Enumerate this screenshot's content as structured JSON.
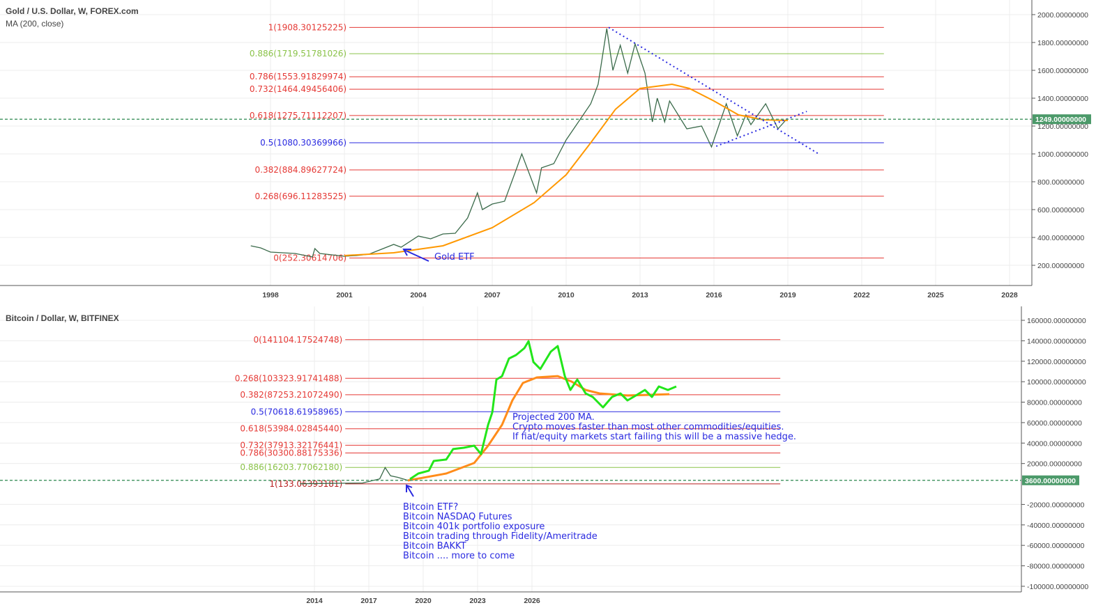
{
  "chart_data": [
    {
      "type": "line",
      "title": "Gold / U.S. Dollar, W, FOREX.com",
      "indicator": "MA (200, close)",
      "xlim": [
        1996.6,
        2028.5
      ],
      "ylim": [
        100,
        2040
      ],
      "x_ticks": [
        "1998",
        "2001",
        "2004",
        "2007",
        "2010",
        "2013",
        "2016",
        "2019",
        "2022",
        "2025",
        "2028"
      ],
      "y_ticks": [
        "200.00000000",
        "400.00000000",
        "600.00000000",
        "800.00000000",
        "1000.00000000",
        "1200.00000000",
        "1400.00000000",
        "1600.00000000",
        "1800.00000000",
        "2000.00000000"
      ],
      "y_tick_values": [
        200,
        400,
        600,
        800,
        1000,
        1200,
        1400,
        1600,
        1800,
        2000
      ],
      "current_price": {
        "value": 1249,
        "label": "1249.00000000",
        "color": "#4c9a6a"
      },
      "grid": true,
      "price": [
        [
          1997.2,
          340
        ],
        [
          1997.6,
          325
        ],
        [
          1998,
          295
        ],
        [
          1999,
          285
        ],
        [
          1999.7,
          260
        ],
        [
          1999.8,
          320
        ],
        [
          2000,
          285
        ],
        [
          2001,
          265
        ],
        [
          2001.5,
          270
        ],
        [
          2002,
          280
        ],
        [
          2002.5,
          315
        ],
        [
          2003,
          350
        ],
        [
          2003.3,
          330
        ],
        [
          2004,
          410
        ],
        [
          2004.5,
          390
        ],
        [
          2005,
          425
        ],
        [
          2005.5,
          430
        ],
        [
          2006,
          540
        ],
        [
          2006.4,
          720
        ],
        [
          2006.6,
          600
        ],
        [
          2007,
          640
        ],
        [
          2007.5,
          660
        ],
        [
          2008,
          900
        ],
        [
          2008.2,
          1000
        ],
        [
          2008.8,
          720
        ],
        [
          2009,
          900
        ],
        [
          2009.5,
          930
        ],
        [
          2010,
          1100
        ],
        [
          2010.5,
          1230
        ],
        [
          2011,
          1360
        ],
        [
          2011.3,
          1500
        ],
        [
          2011.65,
          1900
        ],
        [
          2011.9,
          1600
        ],
        [
          2012.2,
          1780
        ],
        [
          2012.5,
          1580
        ],
        [
          2012.8,
          1790
        ],
        [
          2013.2,
          1580
        ],
        [
          2013.5,
          1230
        ],
        [
          2013.7,
          1400
        ],
        [
          2014,
          1230
        ],
        [
          2014.2,
          1380
        ],
        [
          2014.9,
          1180
        ],
        [
          2015.5,
          1200
        ],
        [
          2015.9,
          1050
        ],
        [
          2016.5,
          1360
        ],
        [
          2016.95,
          1130
        ],
        [
          2017.3,
          1280
        ],
        [
          2017.5,
          1210
        ],
        [
          2018.1,
          1360
        ],
        [
          2018.6,
          1180
        ],
        [
          2018.95,
          1249
        ]
      ],
      "ma200": [
        [
          2001,
          270
        ],
        [
          2003,
          290
        ],
        [
          2005,
          340
        ],
        [
          2007,
          470
        ],
        [
          2008.7,
          650
        ],
        [
          2010,
          850
        ],
        [
          2011,
          1080
        ],
        [
          2012,
          1320
        ],
        [
          2013,
          1470
        ],
        [
          2014.3,
          1500
        ],
        [
          2015,
          1470
        ],
        [
          2016,
          1380
        ],
        [
          2017,
          1280
        ],
        [
          2018,
          1245
        ],
        [
          2019,
          1240
        ]
      ],
      "trendlines": [
        [
          [
            2011.73,
            1908
          ],
          [
            2020.3,
            995
          ]
        ],
        [
          [
            2016.09,
            1055
          ],
          [
            2019.77,
            1305
          ]
        ]
      ],
      "fib_range": [
        2001.2,
        2022.9
      ],
      "fib_levels": [
        {
          "label": "1(1908.30125225)",
          "value": 1908.30125225,
          "color": "#e53935"
        },
        {
          "label": "0.886(1719.51781026)",
          "value": 1719.51781026,
          "color": "#8bc34a"
        },
        {
          "label": "0.786(1553.91829974)",
          "value": 1553.91829974,
          "color": "#e53935"
        },
        {
          "label": "0.732(1464.49456406)",
          "value": 1464.49456406,
          "color": "#e53935"
        },
        {
          "label": "0.618(1275.71112207)",
          "value": 1275.71112207,
          "color": "#e53935"
        },
        {
          "label": "0.5(1080.30369966)",
          "value": 1080.30369966,
          "color": "#2a2ae0"
        },
        {
          "label": "0.382(884.89627724)",
          "value": 884.89627724,
          "color": "#e53935"
        },
        {
          "label": "0.268(696.11283525)",
          "value": 696.11283525,
          "color": "#e53935"
        },
        {
          "label": "0(252.30614706)",
          "value": 252.30614706,
          "color": "#e53935"
        }
      ],
      "annotation": {
        "text": "Gold ETF",
        "color": "#2a2ae0"
      }
    },
    {
      "type": "line",
      "title": "Bitcoin / Dollar, W, BITFINEX",
      "xlim": [
        2012,
        2041
      ],
      "ylim": [
        -105000,
        165000
      ],
      "x_ticks": [
        "2014",
        "2017",
        "2020",
        "2023",
        "2026"
      ],
      "y_ticks": [
        "160000.00000000",
        "140000.00000000",
        "120000.00000000",
        "100000.00000000",
        "80000.00000000",
        "60000.00000000",
        "40000.00000000",
        "20000.00000000",
        "-20000.00000000",
        "-40000.00000000",
        "-60000.00000000",
        "-80000.00000000",
        "-100000.00000000"
      ],
      "y_tick_values": [
        160000,
        140000,
        120000,
        100000,
        80000,
        60000,
        40000,
        20000,
        -20000,
        -40000,
        -60000,
        -80000,
        -100000
      ],
      "current_price": {
        "value": 3600,
        "label": "3600.00000000",
        "color": "#4c9a6a"
      },
      "grid": true,
      "price": [
        [
          2013.2,
          200
        ],
        [
          2016.65,
          1000
        ],
        [
          2017.6,
          5000
        ],
        [
          2017.9,
          16000
        ],
        [
          2018.2,
          8000
        ],
        [
          2018.6,
          6500
        ],
        [
          2019.15,
          3600
        ]
      ],
      "projection": [
        [
          2019.27,
          4800
        ],
        [
          2019.73,
          10250
        ],
        [
          2020.31,
          13000
        ],
        [
          2020.58,
          22500
        ],
        [
          2021.27,
          23900
        ],
        [
          2021.65,
          34100
        ],
        [
          2022.23,
          35400
        ],
        [
          2022.81,
          37500
        ],
        [
          2023.19,
          29300
        ],
        [
          2023.58,
          57900
        ],
        [
          2023.81,
          70100
        ],
        [
          2024.04,
          102100
        ],
        [
          2024.35,
          105500
        ],
        [
          2024.73,
          122600
        ],
        [
          2025.12,
          126000
        ],
        [
          2025.58,
          132800
        ],
        [
          2025.81,
          139600
        ],
        [
          2026.08,
          119200
        ],
        [
          2026.46,
          112400
        ],
        [
          2027.04,
          129400
        ],
        [
          2027.42,
          134800
        ],
        [
          2027.81,
          105500
        ],
        [
          2028.12,
          91900
        ],
        [
          2028.5,
          102100
        ],
        [
          2028.96,
          88500
        ],
        [
          2029.35,
          85100
        ],
        [
          2029.92,
          74900
        ],
        [
          2030.42,
          85100
        ],
        [
          2030.88,
          88500
        ],
        [
          2031.27,
          81700
        ],
        [
          2031.73,
          86500
        ],
        [
          2032.23,
          91900
        ],
        [
          2032.62,
          85100
        ],
        [
          2033,
          95300
        ],
        [
          2033.5,
          91900
        ],
        [
          2033.96,
          95300
        ]
      ],
      "projected_ma200": [
        [
          2019.15,
          3400
        ],
        [
          2021.27,
          10250
        ],
        [
          2022.81,
          20500
        ],
        [
          2023.58,
          37500
        ],
        [
          2024.35,
          57900
        ],
        [
          2024.92,
          81700
        ],
        [
          2025.5,
          98700
        ],
        [
          2026.27,
          104200
        ],
        [
          2027.42,
          105500
        ],
        [
          2028.19,
          100100
        ],
        [
          2028.96,
          91900
        ],
        [
          2029.73,
          88500
        ],
        [
          2031.27,
          86500
        ],
        [
          2033.58,
          87800
        ]
      ],
      "fib_range": [
        2015.7,
        2039.7
      ],
      "fib_levels": [
        {
          "label": "0(141104.17524748)",
          "value": 141104.17524748,
          "color": "#e53935"
        },
        {
          "label": "0.268(103323.91741488)",
          "value": 103323.91741488,
          "color": "#e53935"
        },
        {
          "label": "0.382(87253.21072490)",
          "value": 87253.2107249,
          "color": "#e53935"
        },
        {
          "label": "0.5(70618.61958965)",
          "value": 70618.61958965,
          "color": "#2a2ae0"
        },
        {
          "label": "0.618(53984.02845440)",
          "value": 53984.0284544,
          "color": "#e53935"
        },
        {
          "label": "0.732(37913.32176441)",
          "value": 37913.32176441,
          "color": "#e53935"
        },
        {
          "label": "0.786(30300.88175336)",
          "value": 30300.88175336,
          "color": "#e53935"
        },
        {
          "label": "0.886(16203.77062180)",
          "value": 16203.7706218,
          "color": "#8bc34a"
        },
        {
          "label": "1(133.06393181)",
          "value": 133.06393181,
          "color": "#b71c1c"
        }
      ],
      "annotations": [
        {
          "lines": [
            "Projected 200 MA.",
            "Crypto moves faster than most other commodities/equities.",
            "If fiat/equity markets start failing this will be a massive hedge."
          ],
          "color": "#2a2ae0"
        },
        {
          "lines": [
            "Bitcoin ETF?",
            "Bitcoin NASDAQ Futures",
            "Bitcoin 401k portfolio exposure",
            "Bitcoin trading through Fidelity/Ameritrade",
            "Bitcoin BAKKT",
            "Bitcoin .... more to come"
          ],
          "color": "#2a2ae0"
        }
      ]
    }
  ]
}
